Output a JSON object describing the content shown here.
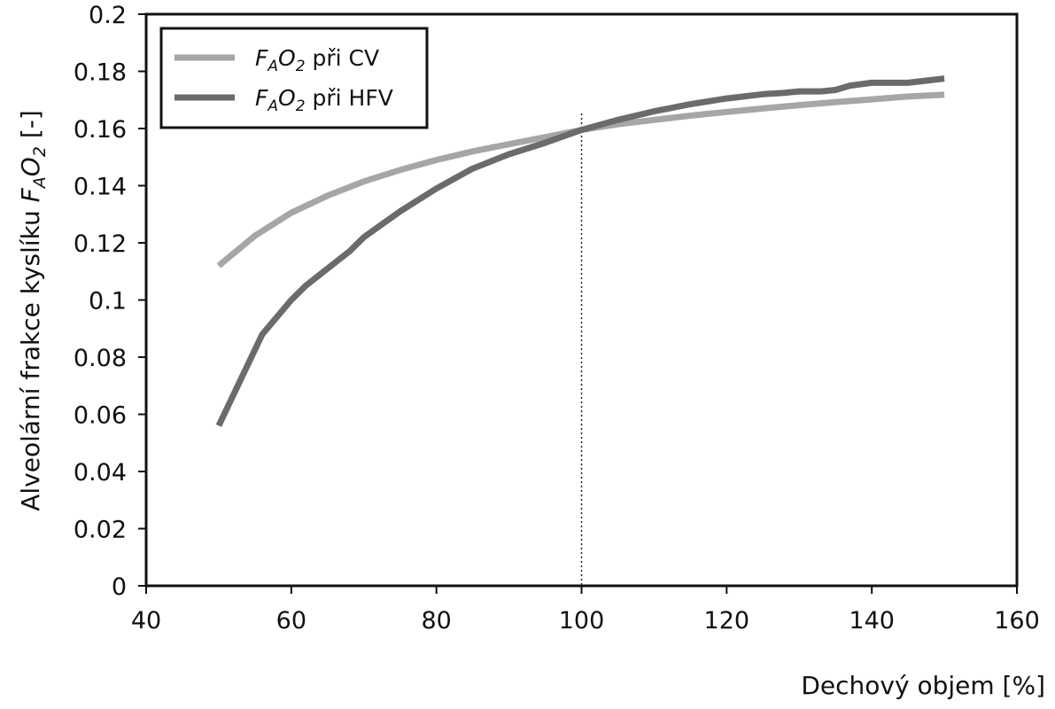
{
  "chart_data": {
    "type": "line",
    "xlabel": "Dechový objem [%]",
    "ylabel": {
      "prefix": "Alveolární frakce kyslíku ",
      "symbol_f": "F",
      "sub_a": "A",
      "symbol_o": "O",
      "sub_2": "2",
      "unit": " [-]"
    },
    "xlim": [
      40,
      160
    ],
    "ylim": [
      0,
      0.2
    ],
    "x_ticks": [
      "40",
      "60",
      "80",
      "100",
      "120",
      "140",
      "160"
    ],
    "y_ticks": [
      "0",
      "0.02",
      "0.04",
      "0.06",
      "0.08",
      "0.1",
      "0.12",
      "0.14",
      "0.16",
      "0.18",
      "0.2"
    ],
    "reference_line_x": 100,
    "grid": false,
    "legend_position": "top-left",
    "series": [
      {
        "legend": {
          "f": "F",
          "sub_a": "A",
          "o": "O",
          "sub_2": "2",
          "suffix": "při CV"
        },
        "color": "#a6a6a6",
        "x": [
          50,
          55,
          60,
          65,
          70,
          75,
          80,
          85,
          90,
          95,
          100,
          105,
          110,
          115,
          120,
          125,
          130,
          135,
          140,
          145,
          150
        ],
        "y": [
          0.112,
          0.1225,
          0.1305,
          0.1365,
          0.1415,
          0.1455,
          0.149,
          0.152,
          0.1545,
          0.157,
          0.1595,
          0.1615,
          0.163,
          0.1645,
          0.1658,
          0.167,
          0.1682,
          0.1692,
          0.1702,
          0.1712,
          0.1718
        ]
      },
      {
        "legend": {
          "f": "F",
          "sub_a": "A",
          "o": "O",
          "sub_2": "2",
          "suffix": "při HFV"
        },
        "color": "#6b6b6b",
        "x": [
          50,
          53,
          56,
          60,
          62,
          65,
          68,
          70,
          75,
          80,
          85,
          88,
          90,
          95,
          100,
          105,
          110,
          115,
          120,
          125,
          128,
          130,
          133,
          135,
          137,
          140,
          145,
          150
        ],
        "y": [
          0.056,
          0.072,
          0.088,
          0.1,
          0.105,
          0.111,
          0.117,
          0.122,
          0.131,
          0.139,
          0.146,
          0.149,
          0.151,
          0.155,
          0.1595,
          0.163,
          0.166,
          0.1685,
          0.1705,
          0.172,
          0.1725,
          0.173,
          0.173,
          0.1735,
          0.175,
          0.176,
          0.176,
          0.1775
        ]
      }
    ]
  }
}
